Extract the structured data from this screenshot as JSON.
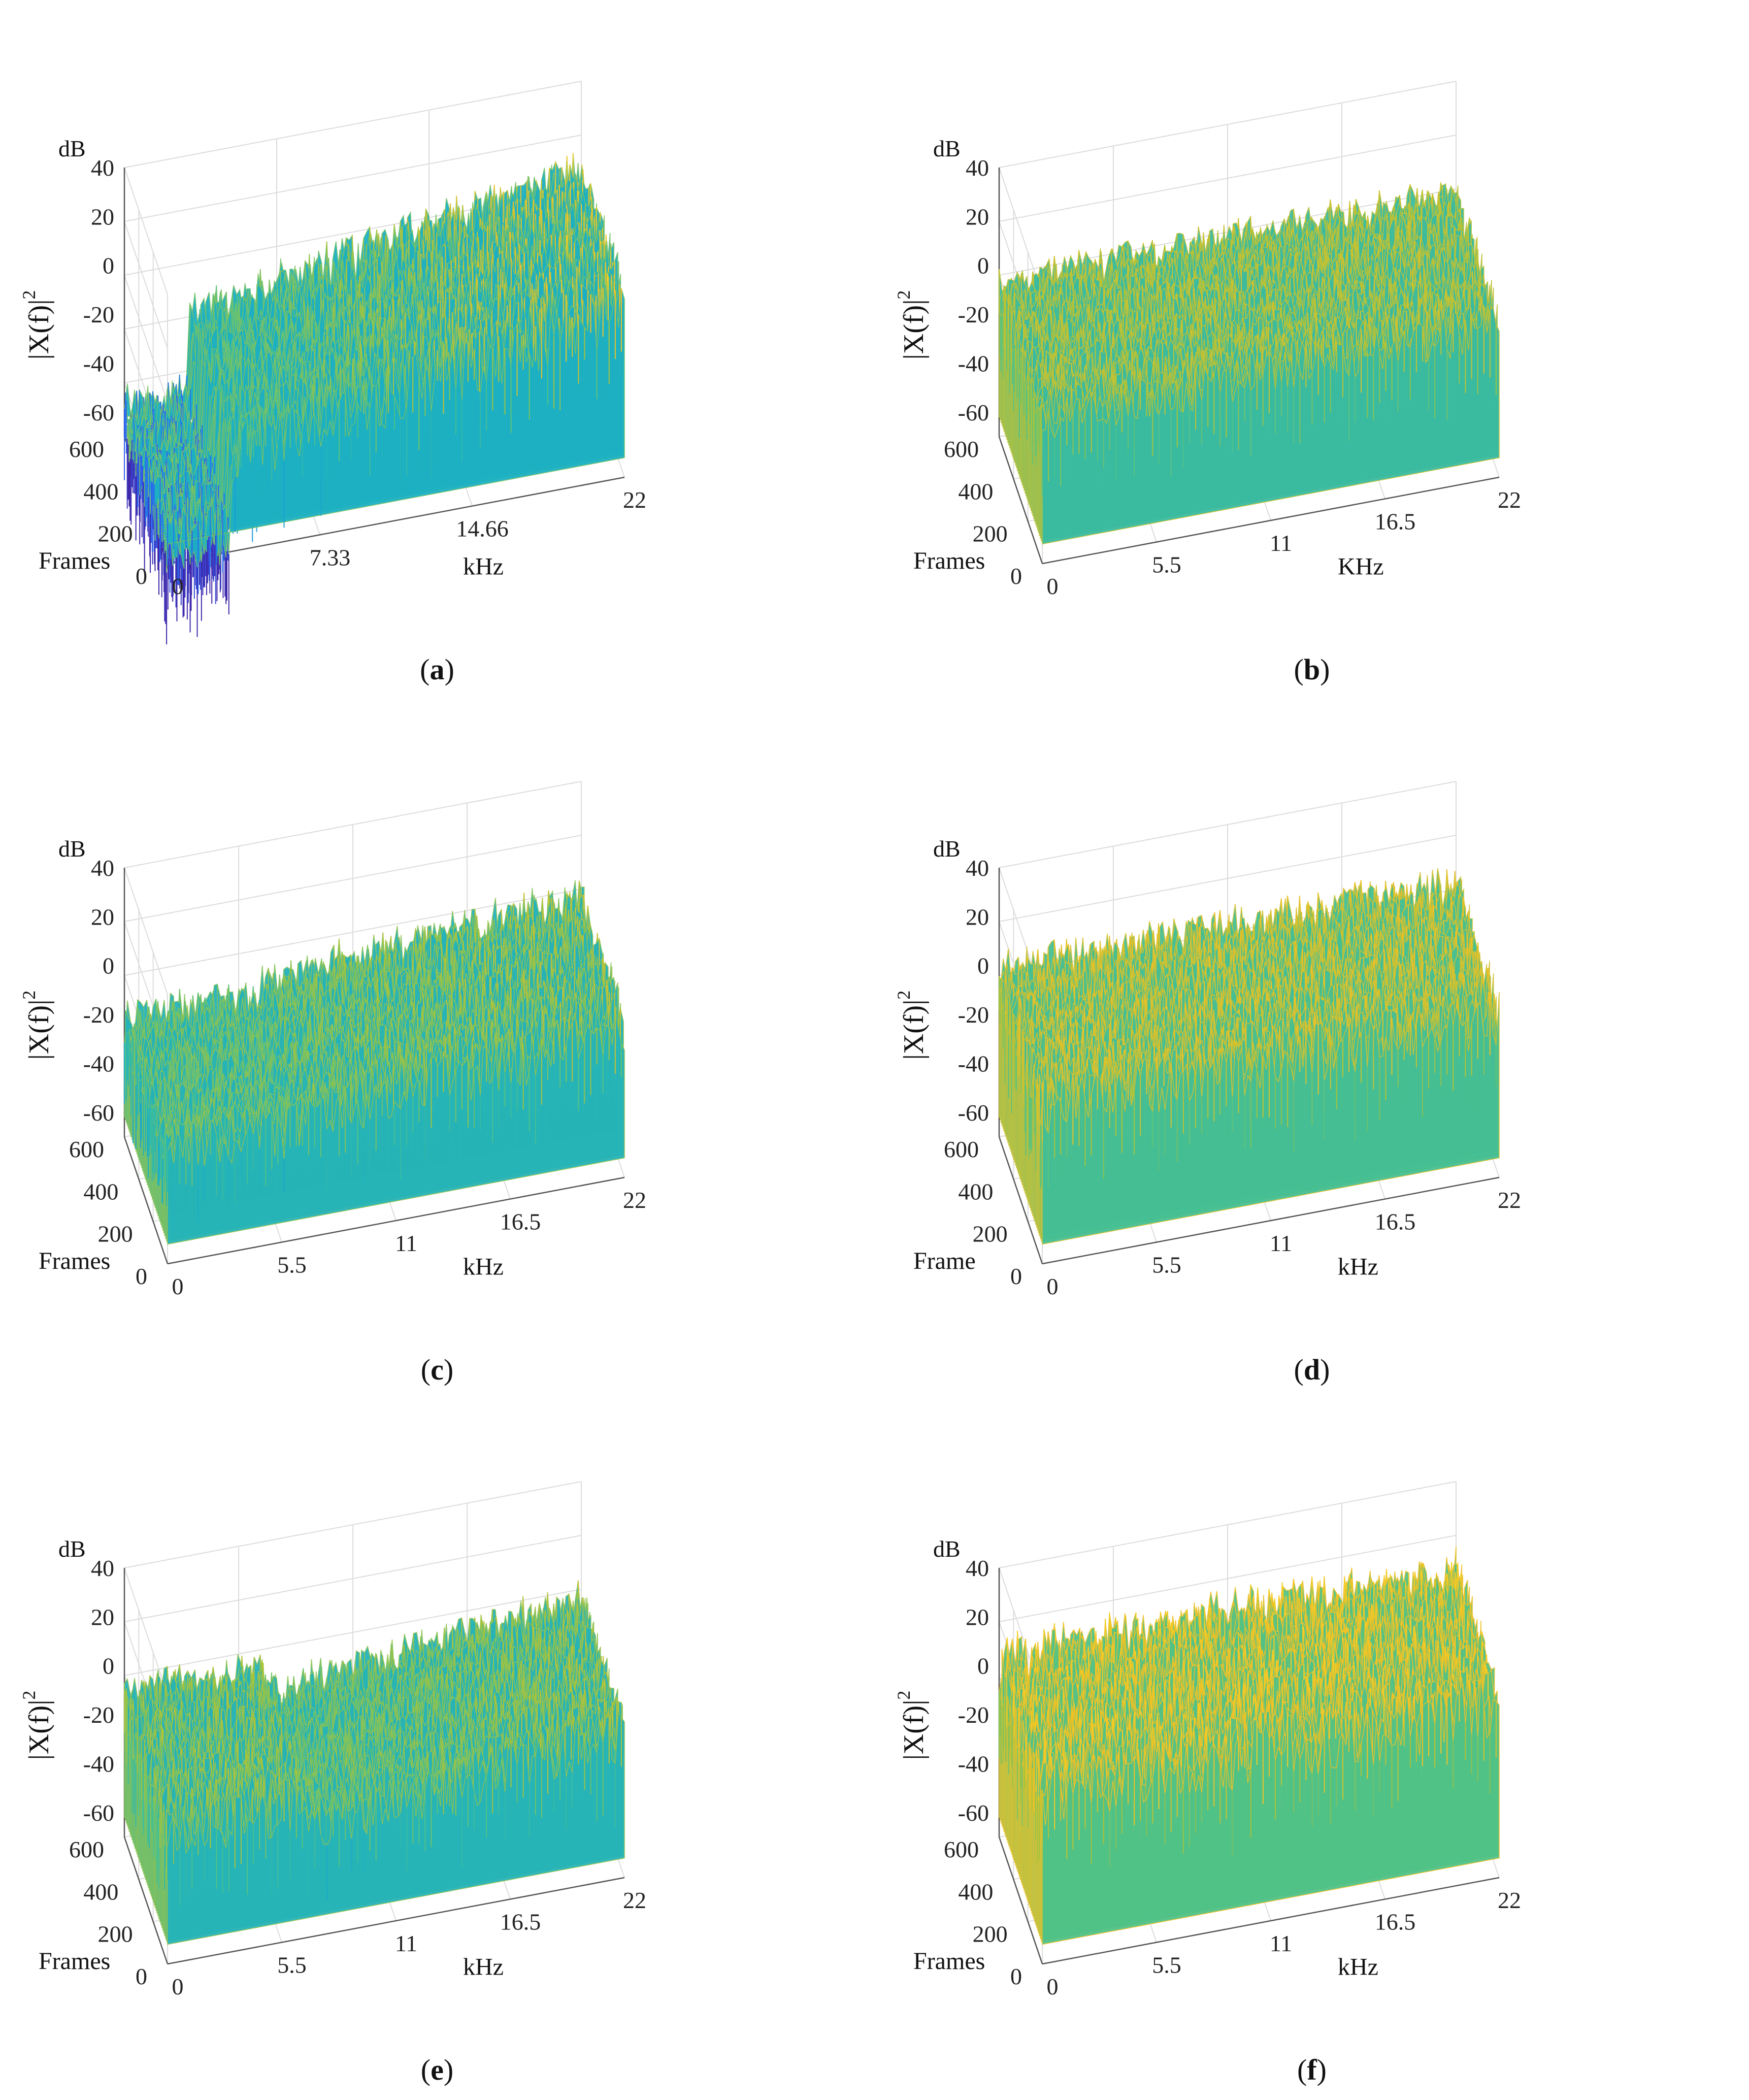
{
  "chart_data": [
    {
      "id": "a",
      "type": "surface",
      "caption_letter": "a",
      "zlabel": "|X(f)|",
      "zlabel_sup": "2",
      "zunit": "dB",
      "zticks": [
        "40",
        "20",
        "0",
        "-20",
        "-40",
        "-60"
      ],
      "zlim": [
        -70,
        40
      ],
      "ylabel": "Frames",
      "yticks": [
        "600",
        "400",
        "200",
        "0"
      ],
      "ylim": [
        0,
        600
      ],
      "xlabel": "kHz",
      "xticks": [
        "0",
        "7.33",
        "14.66",
        "22"
      ],
      "xlim": [
        0,
        22
      ],
      "surface": {
        "low_region_kHz": [
          0,
          3.0
        ],
        "low_level_dB": -62,
        "high_level_dB": [
          -30,
          0
        ],
        "noise_dB": 14
      }
    },
    {
      "id": "b",
      "type": "surface",
      "caption_letter": "b",
      "zlabel": "|X(f)|",
      "zlabel_sup": "2",
      "zunit": "dB",
      "zticks": [
        "40",
        "20",
        "0",
        "-20",
        "-40",
        "-60"
      ],
      "zlim": [
        -70,
        40
      ],
      "ylabel": "Frames",
      "yticks": [
        "600",
        "400",
        "200",
        "0"
      ],
      "ylim": [
        0,
        600
      ],
      "xlabel": "KHz",
      "xticks": [
        "0",
        "5.5",
        "11",
        "16.5",
        "22"
      ],
      "xlim": [
        0,
        22
      ],
      "surface": {
        "low_region_kHz": [
          0,
          0
        ],
        "low_level_dB": -10,
        "high_level_dB": [
          -10,
          -8
        ],
        "noise_dB": 10
      }
    },
    {
      "id": "c",
      "type": "surface",
      "caption_letter": "c",
      "zlabel": "|X(f)|",
      "zlabel_sup": "2",
      "zunit": "dB",
      "zticks": [
        "40",
        "20",
        "0",
        "-20",
        "-40",
        "-60"
      ],
      "zlim": [
        -70,
        40
      ],
      "ylabel": "Frames",
      "yticks": [
        "600",
        "400",
        "200",
        "0"
      ],
      "ylim": [
        0,
        600
      ],
      "xlabel": "kHz",
      "xticks": [
        "0",
        "5.5",
        "11",
        "16.5",
        "22"
      ],
      "xlim": [
        0,
        22
      ],
      "surface": {
        "low_region_kHz": [
          0,
          6.5
        ],
        "low_level_dB": -25,
        "high_level_dB": [
          -20,
          -10
        ],
        "noise_dB": 12
      }
    },
    {
      "id": "d",
      "type": "surface",
      "caption_letter": "d",
      "zlabel": "|X(f)|",
      "zlabel_sup": "2",
      "zunit": "dB",
      "zticks": [
        "40",
        "20",
        "0",
        "-20",
        "-40",
        "-60"
      ],
      "zlim": [
        -70,
        40
      ],
      "ylabel": "Frame",
      "yticks": [
        "600",
        "400",
        "200",
        "0"
      ],
      "ylim": [
        0,
        600
      ],
      "xlabel": "kHz",
      "xticks": [
        "0",
        "5.5",
        "11",
        "16.5",
        "22"
      ],
      "xlim": [
        0,
        22
      ],
      "surface": {
        "low_region_kHz": [
          0,
          0
        ],
        "low_level_dB": -5,
        "high_level_dB": [
          -5,
          -5
        ],
        "noise_dB": 12
      }
    },
    {
      "id": "e",
      "type": "surface",
      "caption_letter": "e",
      "zlabel": "|X(f)|",
      "zlabel_sup": "2",
      "zunit": "dB",
      "zticks": [
        "40",
        "20",
        "0",
        "-20",
        "-40",
        "-60"
      ],
      "zlim": [
        -70,
        40
      ],
      "ylabel": "Frames",
      "yticks": [
        "600",
        "400",
        "200",
        "0"
      ],
      "ylim": [
        0,
        600
      ],
      "xlabel": "kHz",
      "xticks": [
        "0",
        "5.5",
        "11",
        "16.5",
        "22"
      ],
      "xlim": [
        0,
        22
      ],
      "surface": {
        "low_region_kHz": [
          0,
          6.5
        ],
        "low_level_dB": -15,
        "high_level_dB": [
          -25,
          -12
        ],
        "noise_dB": 12
      }
    },
    {
      "id": "f",
      "type": "surface",
      "caption_letter": "f",
      "zlabel": "|X(f)|",
      "zlabel_sup": "2",
      "zunit": "dB",
      "zticks": [
        "40",
        "20",
        "0",
        "-20",
        "-40",
        "-60"
      ],
      "zlim": [
        -70,
        40
      ],
      "ylabel": "Frames",
      "yticks": [
        "600",
        "400",
        "200",
        "0"
      ],
      "ylim": [
        0,
        600
      ],
      "xlabel": "kHz",
      "xticks": [
        "0",
        "5.5",
        "11",
        "16.5",
        "22"
      ],
      "xlim": [
        0,
        22
      ],
      "surface": {
        "low_region_kHz": [
          0,
          0
        ],
        "low_level_dB": 0,
        "high_level_dB": [
          0,
          0
        ],
        "noise_dB": 14
      }
    }
  ],
  "colormap": [
    "#3e26a8",
    "#2f5ef2",
    "#1a8de0",
    "#1bb0c4",
    "#4ec28a",
    "#a9c33a",
    "#f1c126",
    "#f9dc24"
  ]
}
